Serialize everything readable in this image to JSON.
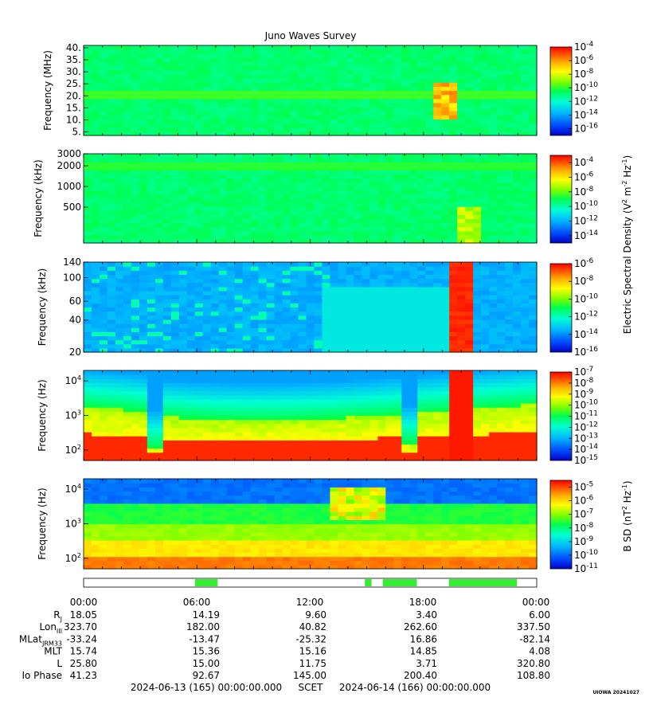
{
  "chart_data": {
    "type": "heatmap",
    "title": "Juno Waves Survey",
    "panels": [
      {
        "ylabel": "Frequency (MHz)",
        "y_scale": "linear",
        "ylim": [
          3.5,
          41
        ],
        "yticks": [
          {
            "v": 5,
            "label": "5."
          },
          {
            "v": 10,
            "label": "10."
          },
          {
            "v": 15,
            "label": "15."
          },
          {
            "v": 20,
            "label": "20."
          },
          {
            "v": 25,
            "label": "25."
          },
          {
            "v": 30,
            "label": "30."
          },
          {
            "v": 35,
            "label": "35."
          },
          {
            "v": 40,
            "label": "40."
          }
        ],
        "colorbar": {
          "range": [
            -17,
            -4
          ],
          "ticks": [
            {
              "v": -4,
              "base": "10",
              "exp": "-4"
            },
            {
              "v": -6,
              "base": "10",
              "exp": "-6"
            },
            {
              "v": -8,
              "base": "10",
              "exp": "-8"
            },
            {
              "v": -10,
              "base": "10",
              "exp": "-10"
            },
            {
              "v": -12,
              "base": "10",
              "exp": "-12"
            },
            {
              "v": -14,
              "base": "10",
              "exp": "-14"
            },
            {
              "v": -16,
              "base": "10",
              "exp": "-16"
            }
          ]
        }
      },
      {
        "ylabel": "Frequency (kHz)",
        "y_scale": "log",
        "ylim": [
          150,
          3000
        ],
        "yticks": [
          {
            "v": 500,
            "label": "500"
          },
          {
            "v": 1000,
            "label": "1000"
          },
          {
            "v": 2000,
            "label": "2000"
          },
          {
            "v": 3000,
            "label": "3000"
          }
        ],
        "colorbar": {
          "range": [
            -15,
            -3
          ],
          "ticks": [
            {
              "v": -4,
              "base": "10",
              "exp": "-4"
            },
            {
              "v": -6,
              "base": "10",
              "exp": "-6"
            },
            {
              "v": -8,
              "base": "10",
              "exp": "-8"
            },
            {
              "v": -10,
              "base": "10",
              "exp": "-10"
            },
            {
              "v": -12,
              "base": "10",
              "exp": "-12"
            },
            {
              "v": -14,
              "base": "10",
              "exp": "-14"
            }
          ]
        }
      },
      {
        "ylabel": "Frequency (kHz)",
        "y_scale": "log",
        "ylim": [
          20,
          140
        ],
        "yticks": [
          {
            "v": 20,
            "label": "20"
          },
          {
            "v": 40,
            "label": "40"
          },
          {
            "v": 60,
            "label": "60"
          },
          {
            "v": 100,
            "label": "100"
          },
          {
            "v": 140,
            "label": "140"
          }
        ],
        "colorbar": {
          "range": [
            -16,
            -6
          ],
          "ticks": [
            {
              "v": -6,
              "base": "10",
              "exp": "-6"
            },
            {
              "v": -8,
              "base": "10",
              "exp": "-8"
            },
            {
              "v": -10,
              "base": "10",
              "exp": "-10"
            },
            {
              "v": -12,
              "base": "10",
              "exp": "-12"
            },
            {
              "v": -14,
              "base": "10",
              "exp": "-14"
            },
            {
              "v": -16,
              "base": "10",
              "exp": "-16"
            }
          ]
        }
      },
      {
        "ylabel": "Frequency (Hz)",
        "y_scale": "log",
        "ylim": [
          50,
          20000
        ],
        "yticks": [
          {
            "v": 100,
            "base": "10",
            "exp": "2"
          },
          {
            "v": 1000,
            "base": "10",
            "exp": "3"
          },
          {
            "v": 10000,
            "base": "10",
            "exp": "4"
          }
        ],
        "colorbar": {
          "range": [
            -15,
            -7
          ],
          "ticks": [
            {
              "v": -7,
              "base": "10",
              "exp": "-7"
            },
            {
              "v": -8,
              "base": "10",
              "exp": "-8"
            },
            {
              "v": -9,
              "base": "10",
              "exp": "-9"
            },
            {
              "v": -10,
              "base": "10",
              "exp": "-10"
            },
            {
              "v": -11,
              "base": "10",
              "exp": "-11"
            },
            {
              "v": -12,
              "base": "10",
              "exp": "-12"
            },
            {
              "v": -13,
              "base": "10",
              "exp": "-13"
            },
            {
              "v": -14,
              "base": "10",
              "exp": "-14"
            },
            {
              "v": -15,
              "base": "10",
              "exp": "-15"
            }
          ]
        }
      },
      {
        "ylabel": "Frequency (Hz)",
        "y_scale": "log",
        "ylim": [
          50,
          20000
        ],
        "yticks": [
          {
            "v": 100,
            "base": "10",
            "exp": "2"
          },
          {
            "v": 1000,
            "base": "10",
            "exp": "3"
          },
          {
            "v": 10000,
            "base": "10",
            "exp": "4"
          }
        ],
        "colorbar": {
          "range": [
            -11,
            -4.5
          ],
          "ticks": [
            {
              "v": -5,
              "base": "10",
              "exp": "-5"
            },
            {
              "v": -6,
              "base": "10",
              "exp": "-6"
            },
            {
              "v": -7,
              "base": "10",
              "exp": "-7"
            },
            {
              "v": -8,
              "base": "10",
              "exp": "-8"
            },
            {
              "v": -9,
              "base": "10",
              "exp": "-9"
            },
            {
              "v": -10,
              "base": "10",
              "exp": "-10"
            },
            {
              "v": -11,
              "base": "10",
              "exp": "-11"
            }
          ]
        }
      }
    ],
    "colorbar_labels": {
      "electric": {
        "text": "Electric Spectral Density (V",
        "sup1": "2",
        "mid": " m",
        "sup2": "-2",
        "mid2": " Hz",
        "sup3": "-1",
        "end": ")"
      },
      "magnetic": {
        "text": "B SD (nT",
        "sup1": "2",
        "mid": " Hz",
        "sup2": "-1",
        "end": ")"
      }
    },
    "x_ticks": [
      "00:00",
      "06:00",
      "12:00",
      "18:00",
      "00:00"
    ],
    "ephemeris": {
      "rows": [
        {
          "label": "R",
          "sub": "J",
          "values": [
            "18.05",
            "14.19",
            "9.60",
            "3.40",
            "6.00"
          ]
        },
        {
          "label": "Lon",
          "sub": "III",
          "values": [
            "323.70",
            "182.00",
            "40.82",
            "262.60",
            "337.50"
          ]
        },
        {
          "label": "MLat",
          "sub": "JRM33",
          "values": [
            "-33.24",
            "-13.47",
            "-25.32",
            "16.86",
            "-82.14"
          ]
        },
        {
          "label": "MLT",
          "sub": "",
          "values": [
            "15.74",
            "15.36",
            "15.16",
            "14.85",
            "4.08"
          ]
        },
        {
          "label": "L",
          "sub": "",
          "values": [
            "25.80",
            "15.00",
            "11.75",
            "3.71",
            "320.80"
          ]
        },
        {
          "label": "Io Phase",
          "sub": "",
          "values": [
            "41.23",
            "92.67",
            "145.00",
            "200.40",
            "108.80"
          ]
        }
      ]
    },
    "mode_bar_segments_hours": [
      [
        5.9,
        7.1
      ],
      [
        14.9,
        15.25
      ],
      [
        15.85,
        17.65
      ],
      [
        19.35,
        22.95
      ]
    ],
    "footer": {
      "start": "2024-06-13 (165) 00:00:00.000",
      "scet": "SCET",
      "end": "2024-06-14 (166) 00:00:00.000"
    },
    "credit": "UIOWA 20241027",
    "colors": {
      "mode_bar": "#33ee33",
      "colormap": [
        "#0000c8",
        "#0050ff",
        "#00b4ff",
        "#00ffd2",
        "#00ff50",
        "#78ff00",
        "#ffff00",
        "#ffb400",
        "#ff5a00",
        "#ff0000"
      ]
    }
  }
}
